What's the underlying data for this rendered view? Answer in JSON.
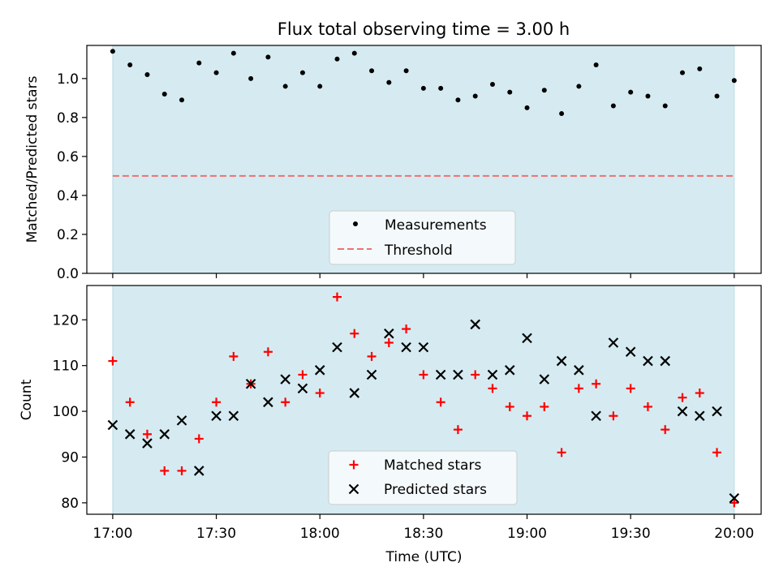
{
  "chart_data": [
    {
      "type": "scatter",
      "title": "Flux total observing time = 3.00 h",
      "xlabel": "",
      "ylabel": "Matched/Predicted stars",
      "ylim": [
        0,
        1.17
      ],
      "yticks": [
        "0.0",
        "0.2",
        "0.4",
        "0.6",
        "0.8",
        "1.0"
      ],
      "shaded_span": [
        "17:00",
        "20:00"
      ],
      "legend_position": "lower-center",
      "series": [
        {
          "name": "Measurements",
          "marker": "dot",
          "color": "#000000",
          "x": [
            "17:00",
            "17:05",
            "17:10",
            "17:15",
            "17:20",
            "17:25",
            "17:30",
            "17:35",
            "17:40",
            "17:45",
            "17:50",
            "17:55",
            "18:00",
            "18:05",
            "18:10",
            "18:15",
            "18:20",
            "18:25",
            "18:30",
            "18:35",
            "18:40",
            "18:45",
            "18:50",
            "18:55",
            "19:00",
            "19:05",
            "19:10",
            "19:15",
            "19:20",
            "19:25",
            "19:30",
            "19:35",
            "19:40",
            "19:45",
            "19:50",
            "19:55",
            "20:00"
          ],
          "y": [
            1.14,
            1.07,
            1.02,
            0.92,
            0.89,
            1.08,
            1.03,
            1.13,
            1.0,
            1.11,
            0.96,
            1.03,
            0.96,
            1.1,
            1.13,
            1.04,
            0.98,
            1.04,
            0.95,
            0.95,
            0.89,
            0.91,
            0.97,
            0.93,
            0.85,
            0.94,
            0.82,
            0.96,
            1.07,
            0.86,
            0.93,
            0.91,
            0.86,
            1.03,
            1.05,
            0.91,
            0.99
          ]
        },
        {
          "name": "Threshold",
          "marker": "dashed-line",
          "color": "#f07070",
          "value": 0.5
        }
      ]
    },
    {
      "type": "scatter",
      "title": "",
      "xlabel": "Time (UTC)",
      "ylabel": "Count",
      "ylim": [
        77.5,
        127.5
      ],
      "yticks": [
        "80",
        "90",
        "100",
        "110",
        "120"
      ],
      "xticks": [
        "17:00",
        "17:30",
        "18:00",
        "18:30",
        "19:00",
        "19:30",
        "20:00"
      ],
      "shaded_span": [
        "17:00",
        "20:00"
      ],
      "legend_position": "lower-center",
      "series": [
        {
          "name": "Matched stars",
          "marker": "plus",
          "color": "#ff0000",
          "x": [
            "17:00",
            "17:05",
            "17:10",
            "17:15",
            "17:20",
            "17:25",
            "17:30",
            "17:35",
            "17:40",
            "17:45",
            "17:50",
            "17:55",
            "18:00",
            "18:05",
            "18:10",
            "18:15",
            "18:20",
            "18:25",
            "18:30",
            "18:35",
            "18:40",
            "18:45",
            "18:50",
            "18:55",
            "19:00",
            "19:05",
            "19:10",
            "19:15",
            "19:20",
            "19:25",
            "19:30",
            "19:35",
            "19:40",
            "19:45",
            "19:50",
            "19:55",
            "20:00"
          ],
          "y": [
            111,
            102,
            95,
            87,
            87,
            94,
            102,
            112,
            106,
            113,
            102,
            108,
            104,
            125,
            117,
            112,
            115,
            118,
            108,
            102,
            96,
            108,
            105,
            101,
            99,
            101,
            91,
            105,
            106,
            99,
            105,
            101,
            96,
            103,
            104,
            91,
            80
          ]
        },
        {
          "name": "Predicted stars",
          "marker": "x",
          "color": "#000000",
          "x": [
            "17:00",
            "17:05",
            "17:10",
            "17:15",
            "17:20",
            "17:25",
            "17:30",
            "17:35",
            "17:40",
            "17:45",
            "17:50",
            "17:55",
            "18:00",
            "18:05",
            "18:10",
            "18:15",
            "18:20",
            "18:25",
            "18:30",
            "18:35",
            "18:40",
            "18:45",
            "18:50",
            "18:55",
            "19:00",
            "19:05",
            "19:10",
            "19:15",
            "19:20",
            "19:25",
            "19:30",
            "19:35",
            "19:40",
            "19:45",
            "19:50",
            "19:55",
            "20:00"
          ],
          "y": [
            97,
            95,
            93,
            95,
            98,
            87,
            99,
            99,
            106,
            102,
            107,
            105,
            109,
            114,
            104,
            108,
            117,
            114,
            114,
            108,
            108,
            119,
            108,
            109,
            116,
            107,
            111,
            109,
            99,
            115,
            113,
            111,
            111,
            100,
            99,
            100,
            81
          ]
        }
      ]
    }
  ],
  "colors": {
    "shade": "#d5ebf1",
    "shade_edge": "#b8dbe6",
    "legend_bg": "#f4f9fb"
  }
}
